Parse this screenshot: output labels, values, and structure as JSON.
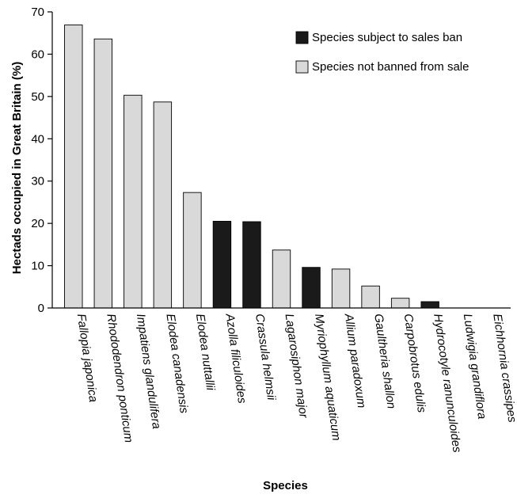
{
  "chart_data": {
    "type": "bar",
    "title": "",
    "xlabel": "Species",
    "ylabel": "Hectads occupied in Great Britain  (%)",
    "ylim": [
      0,
      70
    ],
    "yticks": [
      0,
      10,
      20,
      30,
      40,
      50,
      60,
      70
    ],
    "grid": false,
    "legend_position": "top-right",
    "categories": [
      "Fallopia japonica",
      "Rhododendron ponticum",
      "Impatiens glandulifera",
      "Elodea canadensis",
      "Elodea nuttallii",
      "Azolla filiculoides",
      "Crassula helmsii",
      "Lagarosiphon major",
      "Myriophyllum aquaticum",
      "Allium paradoxum",
      "Gaultheria shallon",
      "Carpobrotus edulis",
      "Hydrocotyle ranunculoides",
      "Ludwigia grandiflora",
      "Eichhornia crassipes"
    ],
    "values": [
      66.9,
      63.6,
      50.3,
      48.7,
      27.3,
      20.5,
      20.4,
      13.7,
      9.6,
      9.2,
      5.2,
      2.3,
      1.5,
      0,
      0
    ],
    "groups": [
      "not_banned",
      "not_banned",
      "not_banned",
      "not_banned",
      "not_banned",
      "banned",
      "banned",
      "not_banned",
      "banned",
      "not_banned",
      "not_banned",
      "not_banned",
      "banned",
      "banned",
      "banned"
    ],
    "series": [
      {
        "key": "banned",
        "name": "Species subject to sales ban",
        "color": "#1a1a1a"
      },
      {
        "key": "not_banned",
        "name": "Species not banned from sale",
        "color": "#d9d9d9"
      }
    ]
  }
}
